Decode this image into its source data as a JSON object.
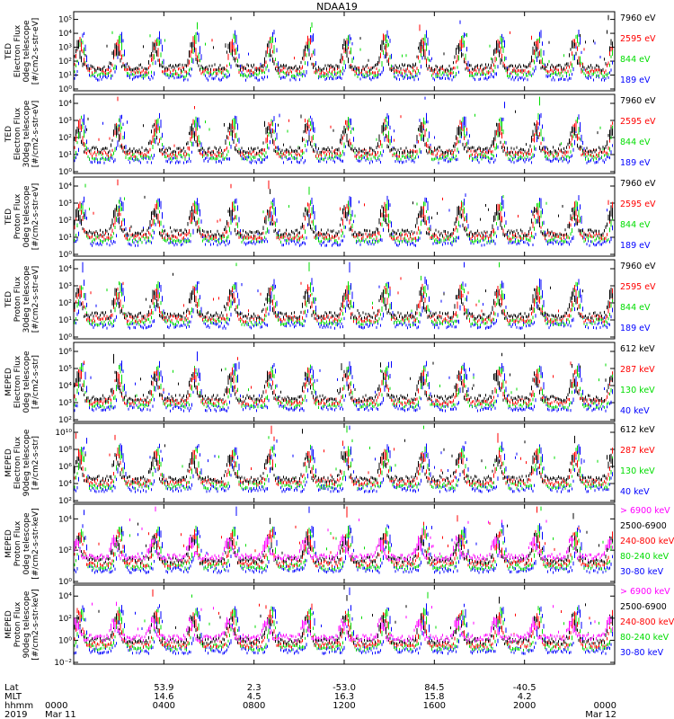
{
  "title": "NDAA19",
  "panels": [
    {
      "ylabel_lines": [
        "TED",
        "Electron Flux",
        "0deg telescope",
        "[#/cm2-s-str-eV]"
      ],
      "ytick_labels": [
        "10⁰",
        "10¹",
        "10²",
        "10³",
        "10⁴",
        "10⁵"
      ],
      "ymin_exp": 0,
      "ymax_exp": 5,
      "legend": [
        {
          "label": "7960 eV",
          "color": "#000000"
        },
        {
          "label": "2595 eV",
          "color": "#ff0000"
        },
        {
          "label": "844 eV",
          "color": "#00dd00"
        },
        {
          "label": "189 eV",
          "color": "#0000ff"
        }
      ]
    },
    {
      "ylabel_lines": [
        "TED",
        "Electron Flux",
        "30deg telescope",
        "[#/cm2-s-str-eV]"
      ],
      "ytick_labels": [
        "10⁰",
        "10¹",
        "10²",
        "10³",
        "10⁴"
      ],
      "ymin_exp": 0,
      "ymax_exp": 4.6,
      "legend": [
        {
          "label": "7960 eV",
          "color": "#000000"
        },
        {
          "label": "2595 eV",
          "color": "#ff0000"
        },
        {
          "label": "844 eV",
          "color": "#00dd00"
        },
        {
          "label": "189 eV",
          "color": "#0000ff"
        }
      ]
    },
    {
      "ylabel_lines": [
        "TED",
        "Proton Flux",
        "0deg telescope",
        "[#/cm2-s-str-eV]"
      ],
      "ytick_labels": [
        "10⁰",
        "10¹",
        "10²",
        "10³",
        "10⁴"
      ],
      "ymin_exp": 0,
      "ymax_exp": 4.6,
      "legend": [
        {
          "label": "7960 eV",
          "color": "#000000"
        },
        {
          "label": "2595 eV",
          "color": "#ff0000"
        },
        {
          "label": "844 eV",
          "color": "#00dd00"
        },
        {
          "label": "189 eV",
          "color": "#0000ff"
        }
      ]
    },
    {
      "ylabel_lines": [
        "TED",
        "Proton Flux",
        "30deg telescope",
        "[#/cm2-s-str-eV]"
      ],
      "ytick_labels": [
        "10⁰",
        "10¹",
        "10²",
        "10³",
        "10⁴"
      ],
      "ymin_exp": 0,
      "ymax_exp": 4.6,
      "legend": [
        {
          "label": "7960 eV",
          "color": "#000000"
        },
        {
          "label": "2595 eV",
          "color": "#ff0000"
        },
        {
          "label": "844 eV",
          "color": "#00dd00"
        },
        {
          "label": "189 eV",
          "color": "#0000ff"
        }
      ]
    },
    {
      "ylabel_lines": [
        "MEPED",
        "Electron Flux",
        "0deg telescope",
        "[#/cm2-s-str]"
      ],
      "ytick_labels": [
        "10²",
        "10³",
        "10⁴",
        "10⁵",
        "10⁶"
      ],
      "ymin_exp": 2,
      "ymax_exp": 6.6,
      "legend": [
        {
          "label": "612 keV",
          "color": "#000000"
        },
        {
          "label": "287 keV",
          "color": "#ff0000"
        },
        {
          "label": "130 keV",
          "color": "#00dd00"
        },
        {
          "label": "40 keV",
          "color": "#0000ff"
        }
      ]
    },
    {
      "ylabel_lines": [
        "MEPED",
        "Electron Flux",
        "90deg telescope",
        "[#/cm2-s-str]"
      ],
      "ytick_labels": [
        "10²",
        "10⁴",
        "10⁶",
        "10⁸",
        "10¹⁰"
      ],
      "ymin_exp": 1.6,
      "ymax_exp": 10,
      "legend": [
        {
          "label": "612 keV",
          "color": "#000000"
        },
        {
          "label": "287 keV",
          "color": "#ff0000"
        },
        {
          "label": "130 keV",
          "color": "#00dd00"
        },
        {
          "label": "40 keV",
          "color": "#0000ff"
        }
      ]
    },
    {
      "ylabel_lines": [
        "MEPED",
        "Proton Flux",
        "0deg telescope",
        "[#/cm2-s-str-keV]"
      ],
      "ytick_labels": [
        "10⁰",
        "10²",
        "10⁴"
      ],
      "ymin_exp": -1.6,
      "ymax_exp": 5.5,
      "legend": [
        {
          "label": "> 6900 keV",
          "color": "#ff00ff"
        },
        {
          "label": "2500-6900",
          "color": "#000000"
        },
        {
          "label": "240-800 keV",
          "color": "#ff0000"
        },
        {
          "label": "80-240 keV",
          "color": "#00dd00"
        },
        {
          "label": "30-80 keV",
          "color": "#0000ff"
        }
      ]
    },
    {
      "ylabel_lines": [
        "MEPED",
        "Proton Flux",
        "90deg telescope",
        "[#/cm2-s-str-keV]"
      ],
      "ytick_labels": [
        "10⁻²",
        "10⁰",
        "10²",
        "10⁴"
      ],
      "ymin_exp": -2.5,
      "ymax_exp": 5,
      "legend": [
        {
          "label": "> 6900 keV",
          "color": "#ff00ff"
        },
        {
          "label": "2500-6900",
          "color": "#000000"
        },
        {
          "label": "240-800 keV",
          "color": "#ff0000"
        },
        {
          "label": "80-240 keV",
          "color": "#00dd00"
        },
        {
          "label": "30-80 keV",
          "color": "#0000ff"
        }
      ]
    }
  ],
  "xaxis": {
    "row_labels": [
      "Lat",
      "MLT",
      "hhmm",
      "2019"
    ],
    "ticks": [
      {
        "lat": "",
        "mlt": "",
        "hhmm": "0000",
        "date": "Mar 11"
      },
      {
        "lat": "53.9",
        "mlt": "14.6",
        "hhmm": "0400",
        "date": ""
      },
      {
        "lat": "2.3",
        "mlt": "4.5",
        "hhmm": "0800",
        "date": ""
      },
      {
        "lat": "-53.0",
        "mlt": "16.3",
        "hhmm": "1200",
        "date": ""
      },
      {
        "lat": "84.5",
        "mlt": "15.8",
        "hhmm": "1600",
        "date": ""
      },
      {
        "lat": "-40.5",
        "mlt": "4.2",
        "hhmm": "2000",
        "date": ""
      },
      {
        "lat": "",
        "mlt": "",
        "hhmm": "0000",
        "date": "Mar 12"
      }
    ],
    "range_hours": [
      0,
      24
    ]
  },
  "chart_data": {
    "type": "line",
    "title": "NDAA19",
    "x_unit": "hours UT 2019 Mar 11 to Mar 12",
    "xlim": [
      0,
      24
    ],
    "y_scale": "log",
    "grid": false,
    "legend_placement": "right"
  }
}
